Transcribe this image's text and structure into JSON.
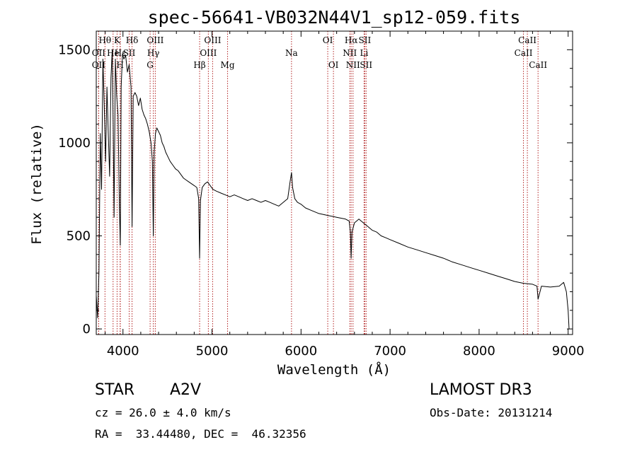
{
  "chart_data": {
    "type": "line",
    "title": "spec-56641-VB032N44V1_sp12-059.fits",
    "xlabel": "Wavelength (Å)",
    "ylabel": "Flux (relative)",
    "xlim": [
      3700,
      9050
    ],
    "ylim": [
      -30,
      1600
    ],
    "xticks": [
      4000,
      5000,
      6000,
      7000,
      8000,
      9000
    ],
    "yticks": [
      0,
      500,
      1000,
      1500
    ],
    "xtick_labels": [
      "4000",
      "5000",
      "6000",
      "7000",
      "8000",
      "9000"
    ],
    "ytick_labels": [
      "0",
      "500",
      "1000",
      "1500"
    ],
    "grid": false,
    "series": [
      {
        "name": "flux",
        "x": [
          3700,
          3715,
          3730,
          3745,
          3760,
          3775,
          3790,
          3805,
          3820,
          3835,
          3850,
          3865,
          3880,
          3890,
          3900,
          3915,
          3930,
          3945,
          3960,
          3970,
          3980,
          3995,
          4010,
          4030,
          4050,
          4070,
          4090,
          4102,
          4115,
          4135,
          4155,
          4175,
          4195,
          4215,
          4235,
          4255,
          4275,
          4295,
          4315,
          4330,
          4341,
          4350,
          4365,
          4380,
          4400,
          4420,
          4440,
          4460,
          4480,
          4500,
          4530,
          4560,
          4590,
          4620,
          4650,
          4680,
          4710,
          4740,
          4770,
          4800,
          4830,
          4850,
          4861,
          4870,
          4890,
          4920,
          4950,
          4980,
          5010,
          5050,
          5100,
          5150,
          5200,
          5250,
          5300,
          5350,
          5400,
          5450,
          5500,
          5550,
          5600,
          5650,
          5700,
          5750,
          5800,
          5850,
          5880,
          5893,
          5905,
          5930,
          5960,
          6000,
          6050,
          6100,
          6150,
          6200,
          6250,
          6300,
          6350,
          6400,
          6450,
          6500,
          6540,
          6555,
          6563,
          6572,
          6600,
          6650,
          6700,
          6750,
          6800,
          6850,
          6900,
          6950,
          7000,
          7100,
          7200,
          7300,
          7400,
          7500,
          7600,
          7700,
          7800,
          7900,
          8000,
          8100,
          8200,
          8300,
          8400,
          8500,
          8600,
          8650,
          8662,
          8700,
          8800,
          8900,
          8950,
          8980,
          9000,
          9010
        ],
        "values": [
          180,
          60,
          300,
          1050,
          750,
          1450,
          1200,
          900,
          1300,
          1050,
          820,
          1350,
          1500,
          1100,
          600,
          1450,
          1250,
          1150,
          650,
          450,
          1300,
          1480,
          1450,
          1470,
          1380,
          1420,
          1300,
          550,
          1250,
          1270,
          1250,
          1200,
          1240,
          1180,
          1150,
          1130,
          1100,
          1060,
          1000,
          900,
          500,
          950,
          1050,
          1080,
          1060,
          1040,
          1000,
          980,
          950,
          930,
          900,
          880,
          860,
          850,
          830,
          810,
          800,
          790,
          780,
          770,
          760,
          700,
          380,
          690,
          760,
          780,
          790,
          770,
          750,
          740,
          730,
          720,
          710,
          720,
          710,
          700,
          690,
          700,
          690,
          680,
          690,
          680,
          670,
          660,
          680,
          700,
          800,
          840,
          760,
          700,
          680,
          670,
          650,
          640,
          630,
          620,
          615,
          610,
          605,
          600,
          595,
          590,
          580,
          520,
          380,
          520,
          570,
          590,
          570,
          550,
          530,
          520,
          500,
          490,
          480,
          460,
          440,
          425,
          410,
          395,
          380,
          360,
          345,
          330,
          315,
          300,
          285,
          270,
          255,
          245,
          240,
          230,
          160,
          230,
          225,
          230,
          250,
          200,
          100,
          0
        ]
      }
    ],
    "spectral_lines": [
      {
        "name": "Hθ",
        "x": 3798,
        "row": 1
      },
      {
        "name": "OII",
        "x": 3727,
        "row": 2
      },
      {
        "name": "OII",
        "x": 3727,
        "row": 3
      },
      {
        "name": "K",
        "x": 3934,
        "row": 1
      },
      {
        "name": "He",
        "x": 3889,
        "row": 2
      },
      {
        "name": "Hε",
        "x": 3970,
        "row": 2
      },
      {
        "name": "H",
        "x": 3968,
        "row": 3
      },
      {
        "name": "SII",
        "x": 4070,
        "row": 2
      },
      {
        "name": "Hδ",
        "x": 4102,
        "row": 1
      },
      {
        "name": "OIII",
        "x": 4363,
        "row": 1
      },
      {
        "name": "Hγ",
        "x": 4341,
        "row": 2
      },
      {
        "name": "G",
        "x": 4305,
        "row": 3
      },
      {
        "name": "Hβ",
        "x": 4861,
        "row": 3
      },
      {
        "name": "OIII",
        "x": 5007,
        "row": 1
      },
      {
        "name": "OIII",
        "x": 4959,
        "row": 2
      },
      {
        "name": "Mg",
        "x": 5175,
        "row": 3
      },
      {
        "name": "Na",
        "x": 5893,
        "row": 2
      },
      {
        "name": "OI",
        "x": 6300,
        "row": 1
      },
      {
        "name": "OI",
        "x": 6364,
        "row": 3
      },
      {
        "name": "Hα",
        "x": 6563,
        "row": 1
      },
      {
        "name": "SII",
        "x": 6716,
        "row": 1
      },
      {
        "name": "NII",
        "x": 6548,
        "row": 2
      },
      {
        "name": "Li",
        "x": 6708,
        "row": 2
      },
      {
        "name": "NII",
        "x": 6584,
        "row": 3
      },
      {
        "name": "SII",
        "x": 6731,
        "row": 3
      },
      {
        "name": "CaII",
        "x": 8542,
        "row": 1
      },
      {
        "name": "CaII",
        "x": 8498,
        "row": 2
      },
      {
        "name": "CaII",
        "x": 8662,
        "row": 3
      }
    ]
  },
  "info": {
    "object_class": "STAR",
    "subclass": "A2V",
    "survey": "LAMOST DR3",
    "redshift": "cz = 26.0 ± 4.0 km/s",
    "obs_date": "Obs-Date: 20131214",
    "coords": "RA =  33.44480, DEC =  46.32356"
  }
}
